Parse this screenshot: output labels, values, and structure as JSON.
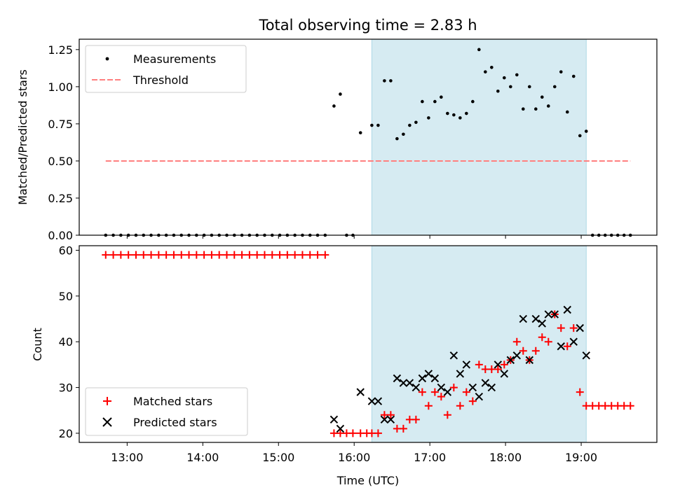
{
  "chart_data": {
    "type": "scatter",
    "title": "Total observing time = 2.83 h",
    "xlabel": "Time (UTC)",
    "x_ticks": [
      "13:00",
      "14:00",
      "15:00",
      "16:00",
      "17:00",
      "18:00",
      "19:00"
    ],
    "shaded_interval": {
      "from": "16:14",
      "to": "19:04",
      "color": "#add8e6"
    },
    "x_range": [
      "12:22",
      "20:00"
    ],
    "panels": [
      {
        "ylabel": "Matched/Predicted stars",
        "ylim": [
          0,
          1.32
        ],
        "y_ticks": [
          "0.00",
          "0.25",
          "0.50",
          "0.75",
          "1.00",
          "1.25"
        ],
        "legend_position": "top-left",
        "series": [
          {
            "name": "Measurements",
            "marker": "dot",
            "color": "#000000",
            "points": [
              [
                "12:43",
                0
              ],
              [
                "12:49",
                0
              ],
              [
                "12:55",
                0
              ],
              [
                "13:01",
                0
              ],
              [
                "13:07",
                0
              ],
              [
                "13:13",
                0
              ],
              [
                "13:19",
                0
              ],
              [
                "13:25",
                0
              ],
              [
                "13:31",
                0
              ],
              [
                "13:37",
                0
              ],
              [
                "13:43",
                0
              ],
              [
                "13:49",
                0
              ],
              [
                "13:55",
                0
              ],
              [
                "14:01",
                0
              ],
              [
                "14:07",
                0
              ],
              [
                "14:13",
                0
              ],
              [
                "14:19",
                0
              ],
              [
                "14:25",
                0
              ],
              [
                "14:31",
                0
              ],
              [
                "14:37",
                0
              ],
              [
                "14:43",
                0
              ],
              [
                "14:49",
                0
              ],
              [
                "14:55",
                0
              ],
              [
                "15:01",
                0
              ],
              [
                "15:07",
                0
              ],
              [
                "15:13",
                0
              ],
              [
                "15:19",
                0
              ],
              [
                "15:25",
                0
              ],
              [
                "15:31",
                0
              ],
              [
                "15:37",
                0
              ],
              [
                "15:44",
                0.87
              ],
              [
                "15:49",
                0.95
              ],
              [
                "15:54",
                0
              ],
              [
                "15:59",
                0
              ],
              [
                "16:05",
                0.69
              ],
              [
                "16:14",
                0.74
              ],
              [
                "16:19",
                0.74
              ],
              [
                "16:24",
                1.04
              ],
              [
                "16:29",
                1.04
              ],
              [
                "16:34",
                0.65
              ],
              [
                "16:39",
                0.68
              ],
              [
                "16:44",
                0.74
              ],
              [
                "16:49",
                0.76
              ],
              [
                "16:54",
                0.9
              ],
              [
                "16:59",
                0.79
              ],
              [
                "17:04",
                0.9
              ],
              [
                "17:09",
                0.93
              ],
              [
                "17:14",
                0.82
              ],
              [
                "17:19",
                0.81
              ],
              [
                "17:24",
                0.79
              ],
              [
                "17:29",
                0.82
              ],
              [
                "17:34",
                0.9
              ],
              [
                "17:39",
                1.25
              ],
              [
                "17:44",
                1.1
              ],
              [
                "17:49",
                1.13
              ],
              [
                "17:54",
                0.97
              ],
              [
                "17:59",
                1.06
              ],
              [
                "18:04",
                1.0
              ],
              [
                "18:09",
                1.08
              ],
              [
                "18:14",
                0.85
              ],
              [
                "18:19",
                1.0
              ],
              [
                "18:24",
                0.85
              ],
              [
                "18:29",
                0.93
              ],
              [
                "18:34",
                0.87
              ],
              [
                "18:39",
                1.0
              ],
              [
                "18:44",
                1.1
              ],
              [
                "18:49",
                0.83
              ],
              [
                "18:54",
                1.07
              ],
              [
                "18:59",
                0.67
              ],
              [
                "19:04",
                0.7
              ],
              [
                "19:09",
                0
              ],
              [
                "19:14",
                0
              ],
              [
                "19:19",
                0
              ],
              [
                "19:24",
                0
              ],
              [
                "19:29",
                0
              ],
              [
                "19:34",
                0
              ],
              [
                "19:39",
                0
              ]
            ]
          },
          {
            "name": "Threshold",
            "marker": "dashed-line",
            "color": "#ff7f7f",
            "points": [
              [
                "12:43",
                0.5
              ],
              [
                "19:39",
                0.5
              ]
            ]
          }
        ]
      },
      {
        "ylabel": "Count",
        "ylim": [
          18,
          61
        ],
        "y_ticks": [
          "20",
          "30",
          "40",
          "50",
          "60"
        ],
        "legend_position": "bottom-left",
        "series": [
          {
            "name": "Matched stars",
            "marker": "plus",
            "color": "#ff0000",
            "points": [
              [
                "12:43",
                59
              ],
              [
                "12:49",
                59
              ],
              [
                "12:55",
                59
              ],
              [
                "13:01",
                59
              ],
              [
                "13:07",
                59
              ],
              [
                "13:13",
                59
              ],
              [
                "13:19",
                59
              ],
              [
                "13:25",
                59
              ],
              [
                "13:31",
                59
              ],
              [
                "13:37",
                59
              ],
              [
                "13:43",
                59
              ],
              [
                "13:49",
                59
              ],
              [
                "13:55",
                59
              ],
              [
                "14:01",
                59
              ],
              [
                "14:07",
                59
              ],
              [
                "14:13",
                59
              ],
              [
                "14:19",
                59
              ],
              [
                "14:25",
                59
              ],
              [
                "14:31",
                59
              ],
              [
                "14:37",
                59
              ],
              [
                "14:43",
                59
              ],
              [
                "14:49",
                59
              ],
              [
                "14:55",
                59
              ],
              [
                "15:01",
                59
              ],
              [
                "15:07",
                59
              ],
              [
                "15:13",
                59
              ],
              [
                "15:19",
                59
              ],
              [
                "15:25",
                59
              ],
              [
                "15:31",
                59
              ],
              [
                "15:37",
                59
              ],
              [
                "15:44",
                20
              ],
              [
                "15:49",
                20
              ],
              [
                "15:54",
                20
              ],
              [
                "15:59",
                20
              ],
              [
                "16:05",
                20
              ],
              [
                "16:10",
                20
              ],
              [
                "16:14",
                20
              ],
              [
                "16:19",
                20
              ],
              [
                "16:24",
                24
              ],
              [
                "16:29",
                24
              ],
              [
                "16:34",
                21
              ],
              [
                "16:39",
                21
              ],
              [
                "16:44",
                23
              ],
              [
                "16:49",
                23
              ],
              [
                "16:54",
                29
              ],
              [
                "16:59",
                26
              ],
              [
                "17:04",
                29
              ],
              [
                "17:09",
                28
              ],
              [
                "17:14",
                24
              ],
              [
                "17:19",
                30
              ],
              [
                "17:24",
                26
              ],
              [
                "17:29",
                29
              ],
              [
                "17:34",
                27
              ],
              [
                "17:39",
                35
              ],
              [
                "17:44",
                34
              ],
              [
                "17:49",
                34
              ],
              [
                "17:54",
                34
              ],
              [
                "17:59",
                35
              ],
              [
                "18:04",
                36
              ],
              [
                "18:09",
                40
              ],
              [
                "18:14",
                38
              ],
              [
                "18:19",
                36
              ],
              [
                "18:24",
                38
              ],
              [
                "18:29",
                41
              ],
              [
                "18:34",
                40
              ],
              [
                "18:39",
                46
              ],
              [
                "18:44",
                43
              ],
              [
                "18:49",
                39
              ],
              [
                "18:54",
                43
              ],
              [
                "18:59",
                29
              ],
              [
                "19:04",
                26
              ],
              [
                "19:09",
                26
              ],
              [
                "19:14",
                26
              ],
              [
                "19:19",
                26
              ],
              [
                "19:24",
                26
              ],
              [
                "19:29",
                26
              ],
              [
                "19:34",
                26
              ],
              [
                "19:39",
                26
              ]
            ]
          },
          {
            "name": "Predicted stars",
            "marker": "cross",
            "color": "#000000",
            "points": [
              [
                "15:44",
                23
              ],
              [
                "15:49",
                21
              ],
              [
                "16:05",
                29
              ],
              [
                "16:14",
                27
              ],
              [
                "16:19",
                27
              ],
              [
                "16:24",
                23
              ],
              [
                "16:29",
                23
              ],
              [
                "16:34",
                32
              ],
              [
                "16:39",
                31
              ],
              [
                "16:44",
                31
              ],
              [
                "16:49",
                30
              ],
              [
                "16:54",
                32
              ],
              [
                "16:59",
                33
              ],
              [
                "17:04",
                32
              ],
              [
                "17:09",
                30
              ],
              [
                "17:14",
                29
              ],
              [
                "17:19",
                37
              ],
              [
                "17:24",
                33
              ],
              [
                "17:29",
                35
              ],
              [
                "17:34",
                30
              ],
              [
                "17:39",
                28
              ],
              [
                "17:44",
                31
              ],
              [
                "17:49",
                30
              ],
              [
                "17:54",
                35
              ],
              [
                "17:59",
                33
              ],
              [
                "18:04",
                36
              ],
              [
                "18:09",
                37
              ],
              [
                "18:14",
                45
              ],
              [
                "18:19",
                36
              ],
              [
                "18:24",
                45
              ],
              [
                "18:29",
                44
              ],
              [
                "18:34",
                46
              ],
              [
                "18:39",
                46
              ],
              [
                "18:44",
                39
              ],
              [
                "18:49",
                47
              ],
              [
                "18:54",
                40
              ],
              [
                "18:59",
                43
              ],
              [
                "19:04",
                37
              ]
            ]
          }
        ]
      }
    ]
  }
}
